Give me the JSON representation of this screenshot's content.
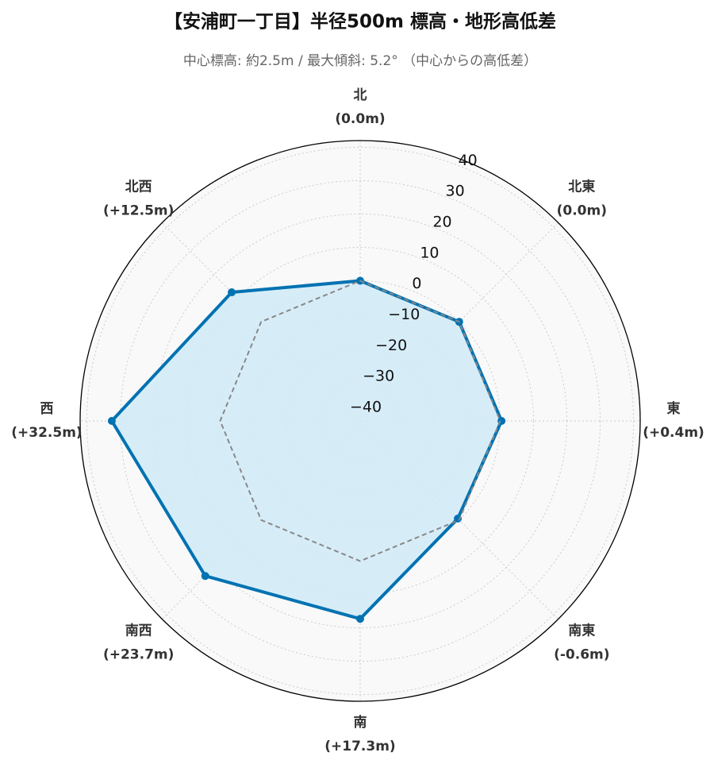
{
  "chart_data": {
    "type": "radar",
    "title": "【安浦町一丁目】半径500m 標高・地形高低差",
    "subtitle": "中心標高: 約2.5m / 最大傾斜: 5.2° （中心からの高低差）",
    "categories": [
      "北",
      "北東",
      "東",
      "南東",
      "南",
      "南西",
      "西",
      "北西"
    ],
    "series": [
      {
        "color": "#0072b2",
        "fill": "#d1ebf7",
        "values": [
          0.0,
          0.0,
          0.4,
          -0.6,
          17.3,
          23.7,
          32.5,
          12.5
        ],
        "value_labels": [
          "(0.0m)",
          "(0.0m)",
          "(+0.4m)",
          "(-0.6m)",
          "(+17.3m)",
          "(+23.7m)",
          "(+32.5m)",
          "(+12.5m)"
        ]
      },
      {
        "color": "#888888",
        "dash": true,
        "values": [
          0,
          0,
          0,
          0,
          0,
          0,
          0,
          0
        ]
      }
    ],
    "ylim": [
      -42,
      42
    ],
    "yticks": [
      {
        "value": -40,
        "label": "−40"
      },
      {
        "value": -30,
        "label": "−30"
      },
      {
        "value": -20,
        "label": "−20"
      },
      {
        "value": -10,
        "label": "−10"
      },
      0,
      10,
      20,
      30,
      40
    ],
    "grid": true
  }
}
